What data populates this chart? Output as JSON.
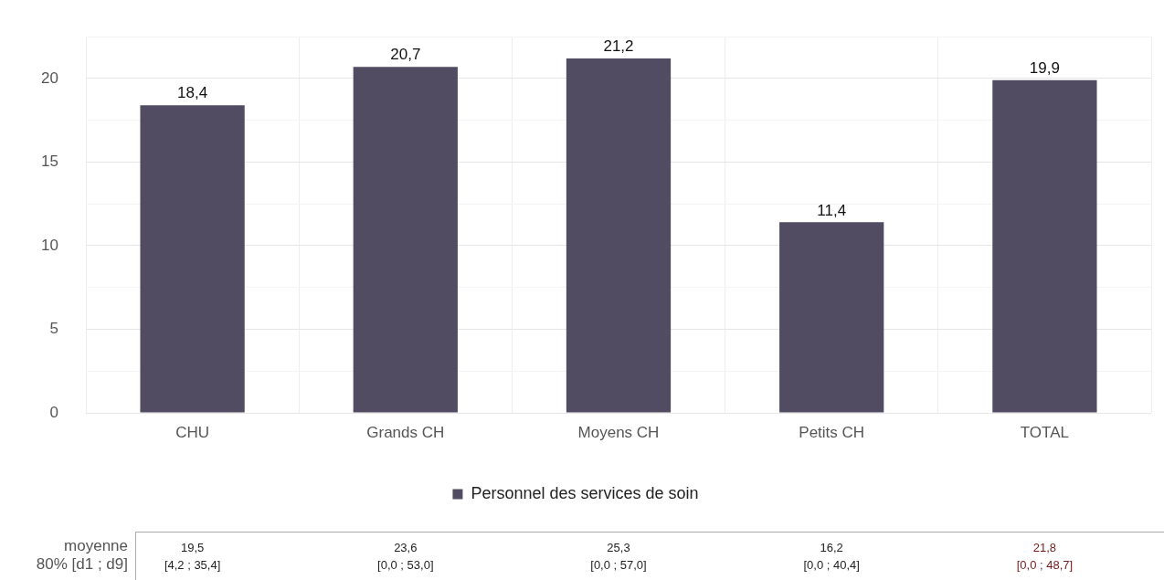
{
  "chart_data": {
    "type": "bar",
    "categories": [
      "CHU",
      "Grands CH",
      "Moyens CH",
      "Petits CH",
      "TOTAL"
    ],
    "series": [
      {
        "name": "Personnel des services de soin",
        "color": "#524c63",
        "values": [
          18.4,
          20.7,
          21.2,
          11.4,
          19.9
        ],
        "value_labels": [
          "18,4",
          "20,7",
          "21,2",
          "11,4",
          "19,9"
        ]
      }
    ],
    "ylim": [
      0,
      22.5
    ],
    "yticks": [
      0,
      {
        "value": 2.5,
        "label": null
      },
      5,
      {
        "value": 7.5,
        "label": null
      },
      10,
      {
        "value": 12.5,
        "label": null
      },
      15,
      {
        "value": 17.5,
        "label": null
      },
      20,
      {
        "value": 22.5,
        "label": null
      }
    ],
    "grid": true,
    "legend": "bottom",
    "annotations": [
      "moyenne",
      "80% [d1 ; d9]",
      "19,5",
      "[4,2 ; 35,4]",
      "23,6",
      "[0,0 ; 53,0]",
      "25,3",
      "[0,0 ; 57,0]",
      "16,2",
      "[0,0 ; 40,4]",
      "21,8",
      "[0,0 ; 48,7]"
    ]
  }
}
